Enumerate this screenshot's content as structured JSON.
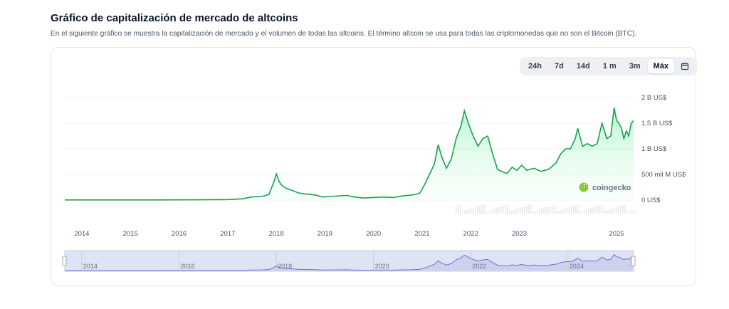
{
  "header": {
    "title": "Gráfico de capitalización de mercado de altcoins",
    "subtitle": "En el siguiente gráfico se muestra la capitalización de mercado y el volumen de todas las altcoins. El término altcoin se usa para todas las criptomonedas que no son el Bitcoin (BTC)."
  },
  "range_buttons": [
    {
      "label": "24h",
      "active": false
    },
    {
      "label": "7d",
      "active": false
    },
    {
      "label": "14d",
      "active": false
    },
    {
      "label": "1 m",
      "active": false
    },
    {
      "label": "3m",
      "active": false
    },
    {
      "label": "Máx",
      "active": true
    }
  ],
  "calendar_icon": "calendar-icon",
  "brand": {
    "name": "coingecko",
    "icon": "gecko-logo-icon"
  },
  "colors": {
    "line": "#16a34a",
    "area_top": "#bbf7d0",
    "navigator_line": "#6b75c9",
    "navigator_fill": "#dfe3f4"
  },
  "chart_data": {
    "type": "area",
    "grid": true,
    "y_axis_position": "right",
    "yticks": [
      {
        "value": 0,
        "label": "0 US$"
      },
      {
        "value": 500,
        "label": "500 mil M US$"
      },
      {
        "value": 1000,
        "label": "1 B US$"
      },
      {
        "value": 1500,
        "label": "1,5 B US$"
      },
      {
        "value": 2000,
        "label": "2 B US$"
      }
    ],
    "ylim": [
      0,
      2000
    ],
    "y_unit": "mil M US$",
    "xlim": [
      2013.65,
      2025.35
    ],
    "xticks": [
      {
        "value": 2014,
        "label": "2014"
      },
      {
        "value": 2015,
        "label": "2015"
      },
      {
        "value": 2016,
        "label": "2016"
      },
      {
        "value": 2017,
        "label": "2017"
      },
      {
        "value": 2018,
        "label": "2018"
      },
      {
        "value": 2019,
        "label": "2019"
      },
      {
        "value": 2020,
        "label": "2020"
      },
      {
        "value": 2021,
        "label": "2021"
      },
      {
        "value": 2022,
        "label": "2022"
      },
      {
        "value": 2023,
        "label": "2023"
      },
      {
        "value": 2025,
        "label": "2025"
      }
    ],
    "navigator_ticks": [
      {
        "value": 2014,
        "label": "2014"
      },
      {
        "value": 2016,
        "label": "2016"
      },
      {
        "value": 2018,
        "label": "2018"
      },
      {
        "value": 2020,
        "label": "2020"
      },
      {
        "value": 2022,
        "label": "2022"
      },
      {
        "value": 2024,
        "label": "2024"
      }
    ],
    "series": [
      {
        "x": [
          2013.65,
          2014.0,
          2014.5,
          2015.0,
          2015.5,
          2016.0,
          2016.5,
          2017.0,
          2017.3,
          2017.5,
          2017.7,
          2017.85,
          2017.95,
          2018.0,
          2018.05,
          2018.1,
          2018.2,
          2018.3,
          2018.45,
          2018.6,
          2018.8,
          2018.95,
          2019.1,
          2019.3,
          2019.45,
          2019.6,
          2019.8,
          2020.0,
          2020.2,
          2020.4,
          2020.6,
          2020.8,
          2020.95,
          2021.05,
          2021.15,
          2021.25,
          2021.33,
          2021.4,
          2021.5,
          2021.6,
          2021.7,
          2021.8,
          2021.87,
          2021.95,
          2022.05,
          2022.15,
          2022.25,
          2022.35,
          2022.45,
          2022.55,
          2022.65,
          2022.75,
          2022.85,
          2022.95,
          2023.05,
          2023.15,
          2023.3,
          2023.45,
          2023.6,
          2023.75,
          2023.85,
          2023.95,
          2024.05,
          2024.15,
          2024.2,
          2024.3,
          2024.4,
          2024.5,
          2024.6,
          2024.7,
          2024.8,
          2024.88,
          2024.95,
          2025.0,
          2025.05,
          2025.1,
          2025.15,
          2025.2,
          2025.25,
          2025.3,
          2025.35
        ],
        "y": [
          3,
          3,
          3,
          3,
          3,
          4,
          6,
          10,
          25,
          60,
          70,
          110,
          350,
          510,
          380,
          300,
          230,
          200,
          140,
          120,
          100,
          60,
          70,
          80,
          90,
          60,
          40,
          50,
          60,
          50,
          80,
          100,
          130,
          300,
          500,
          700,
          1080,
          850,
          620,
          800,
          1200,
          1450,
          1740,
          1500,
          1250,
          1050,
          1200,
          1250,
          900,
          600,
          550,
          520,
          640,
          580,
          680,
          580,
          620,
          560,
          600,
          720,
          900,
          1000,
          1000,
          1200,
          1400,
          1050,
          1100,
          1050,
          1100,
          1500,
          1200,
          1250,
          1800,
          1550,
          1500,
          1400,
          1200,
          1350,
          1250,
          1500,
          1550
        ]
      }
    ]
  }
}
